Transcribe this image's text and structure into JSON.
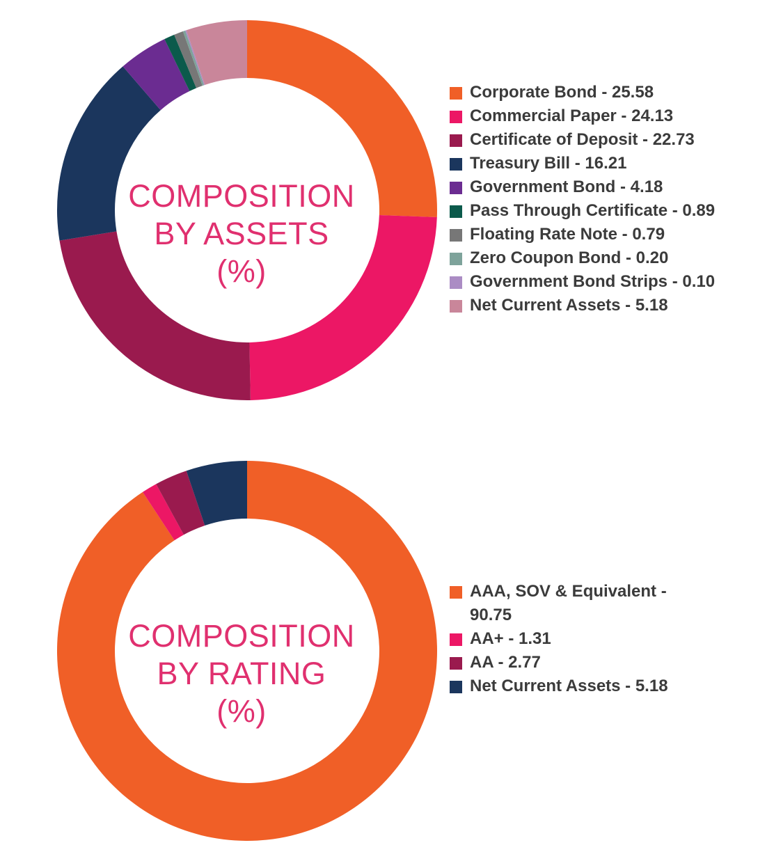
{
  "chart_data": [
    {
      "type": "pie",
      "title_lines": [
        "COMPOSITION",
        "BY ASSETS",
        "(%)"
      ],
      "unit": "%",
      "series": [
        {
          "values": [
            {
              "label": "Corporate Bond",
              "value": 25.58,
              "display": "Corporate Bond - 25.58",
              "color": "#f05f27"
            },
            {
              "label": "Commercial Paper",
              "value": 24.13,
              "display": "Commercial Paper - 24.13",
              "color": "#ec1765"
            },
            {
              "label": "Certificate of Deposit",
              "value": 22.73,
              "display": "Certificate of Deposit - 22.73",
              "color": "#9a1a4e"
            },
            {
              "label": "Treasury Bill",
              "value": 16.21,
              "display": "Treasury Bill - 16.21",
              "color": "#1b365d"
            },
            {
              "label": "Government Bond",
              "value": 4.18,
              "display": "Government Bond - 4.18",
              "color": "#6b2c91"
            },
            {
              "label": "Pass Through Certificate",
              "value": 0.89,
              "display": "Pass Through Certificate - 0.89",
              "color": "#0b5a4b"
            },
            {
              "label": "Floating Rate Note",
              "value": 0.79,
              "display": "Floating Rate Note - 0.79",
              "color": "#777777"
            },
            {
              "label": "Zero Coupon Bond",
              "value": 0.2,
              "display": "Zero Coupon Bond - 0.20",
              "color": "#7ea39b"
            },
            {
              "label": "Government Bond Strips",
              "value": 0.1,
              "display": "Government Bond Strips - 0.10",
              "color": "#ab8cc4"
            },
            {
              "label": "Net Current Assets",
              "value": 5.18,
              "display": "Net Current Assets - 5.18",
              "color": "#c9869a"
            }
          ]
        }
      ],
      "legend_position": "right"
    },
    {
      "type": "pie",
      "title_lines": [
        "COMPOSITION",
        "BY RATING",
        "(%)"
      ],
      "unit": "%",
      "series": [
        {
          "values": [
            {
              "label": "AAA, SOV & Equivalent",
              "value": 90.75,
              "display": "AAA, SOV & Equivalent - 90.75",
              "color": "#f05f27"
            },
            {
              "label": "AA+",
              "value": 1.31,
              "display": "AA+ - 1.31",
              "color": "#ec1765"
            },
            {
              "label": "AA",
              "value": 2.77,
              "display": "AA - 2.77",
              "color": "#9a1a4e"
            },
            {
              "label": "Net Current Assets",
              "value": 5.18,
              "display": "Net Current Assets - 5.18",
              "color": "#1b365d"
            }
          ]
        }
      ],
      "legend_position": "right"
    }
  ],
  "colors": {
    "title_text": "#e0306f",
    "legend_text": "#3b3b3b",
    "background": "#ffffff"
  }
}
